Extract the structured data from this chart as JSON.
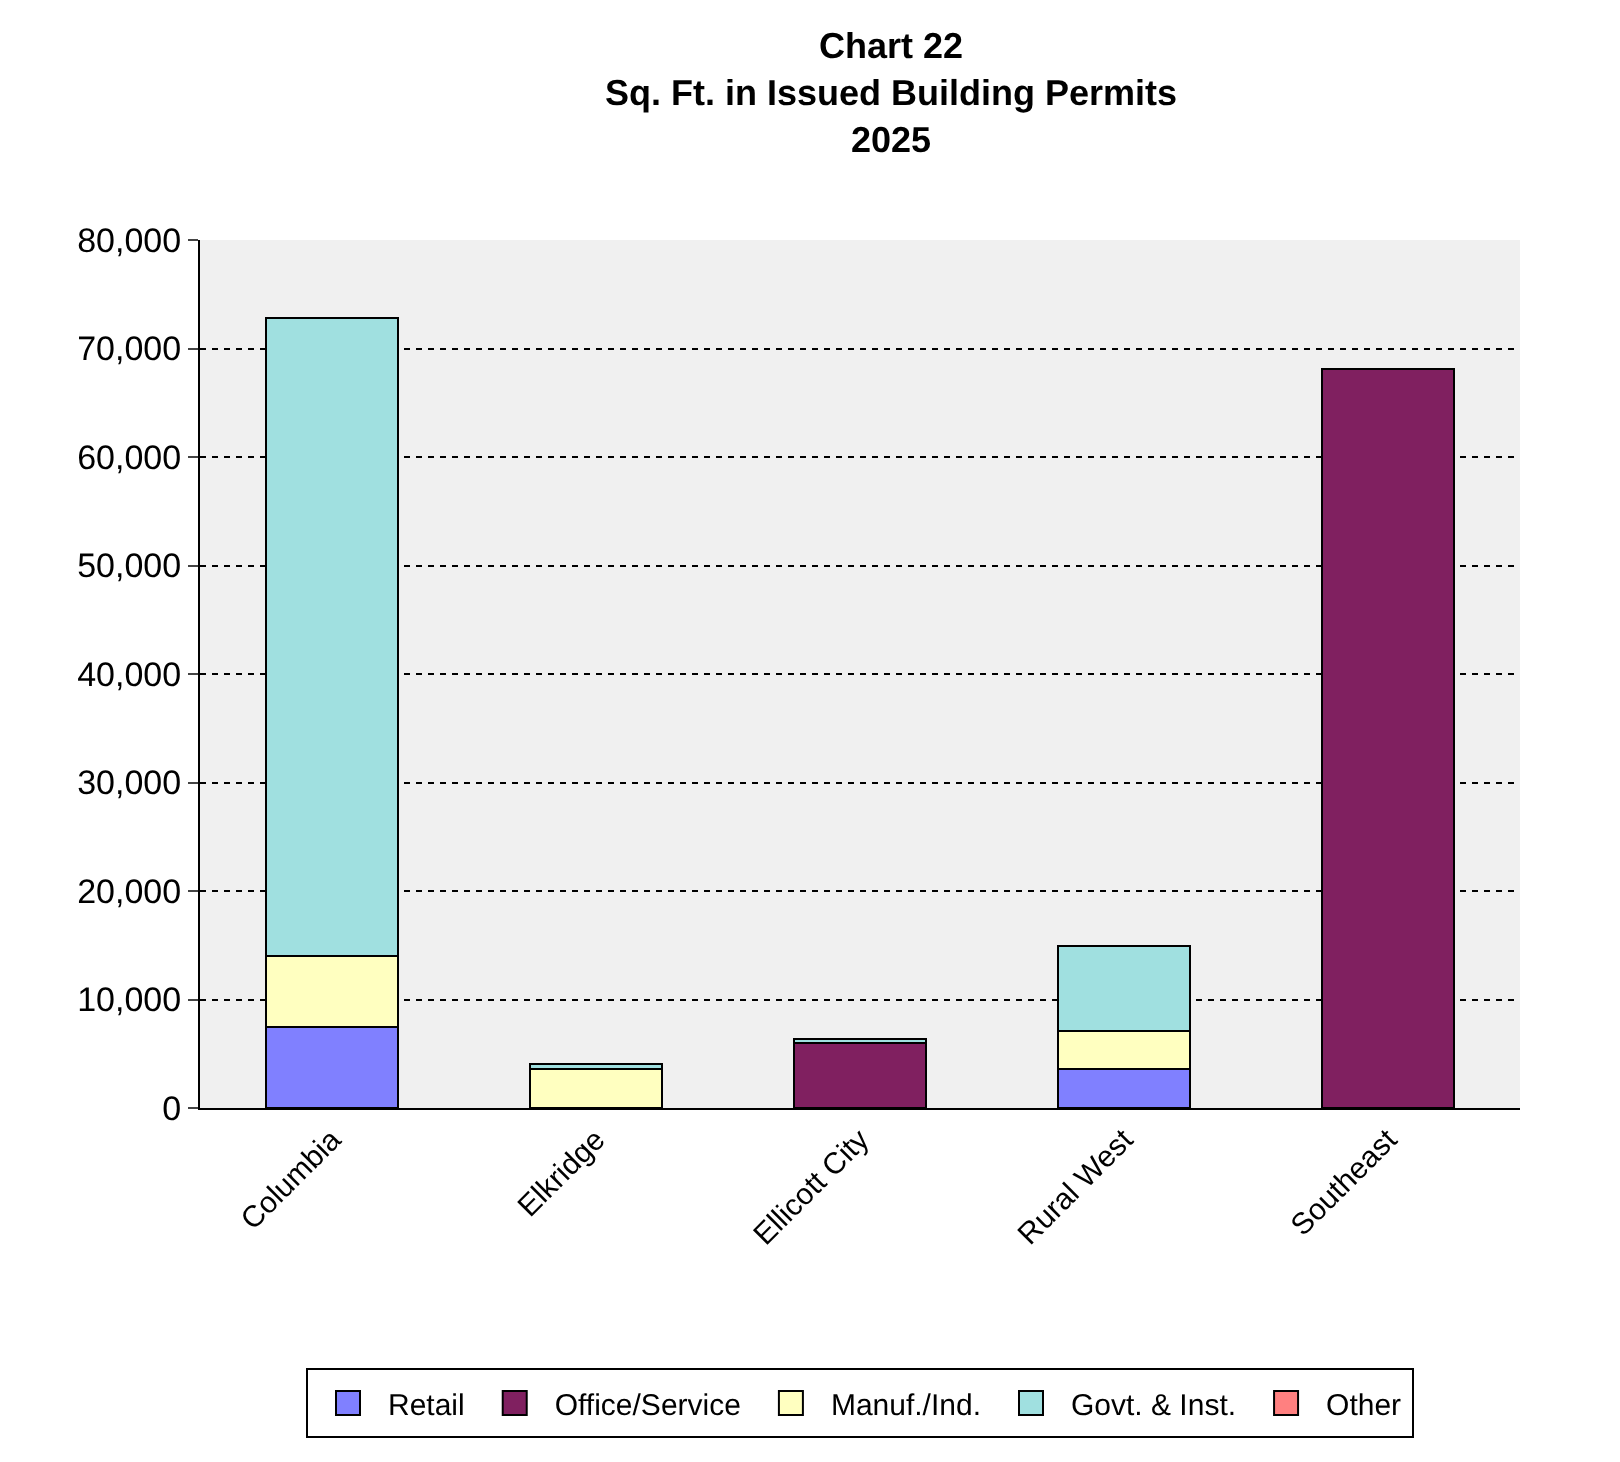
{
  "chart_data": {
    "type": "bar",
    "stacked": true,
    "title": "Chart 22\nSq. Ft. in Issued Building Permits\n2025",
    "categories": [
      "Columbia",
      "Elkridge",
      "Ellicott City",
      "Rural West",
      "Southeast"
    ],
    "series": [
      {
        "name": "Retail",
        "color": "#8080ff",
        "values": [
          7500,
          null,
          null,
          3600,
          null
        ]
      },
      {
        "name": "Office/Service",
        "color": "#802060",
        "values": [
          null,
          null,
          6000,
          null,
          68100
        ]
      },
      {
        "name": "Manuf./Ind.",
        "color": "#ffffc0",
        "values": [
          6500,
          3600,
          null,
          3500,
          null
        ]
      },
      {
        "name": "Govt. & Inst.",
        "color": "#a0e0e0",
        "values": [
          58800,
          500,
          400,
          7800,
          null
        ]
      },
      {
        "name": "Other",
        "color": "#ff8080",
        "values": [
          null,
          null,
          null,
          null,
          null
        ]
      }
    ],
    "ylim": [
      0,
      80000
    ],
    "yticks": [
      {
        "value": 0,
        "label": "0"
      },
      {
        "value": 10000,
        "label": "10,000"
      },
      {
        "value": 20000,
        "label": "20,000"
      },
      {
        "value": 30000,
        "label": "30,000"
      },
      {
        "value": 40000,
        "label": "40,000"
      },
      {
        "value": 50000,
        "label": "50,000"
      },
      {
        "value": 60000,
        "label": "60,000"
      },
      {
        "value": 70000,
        "label": "70,000"
      },
      {
        "value": 80000,
        "label": "80,000"
      }
    ],
    "grid": "y",
    "legend": "bottom"
  }
}
